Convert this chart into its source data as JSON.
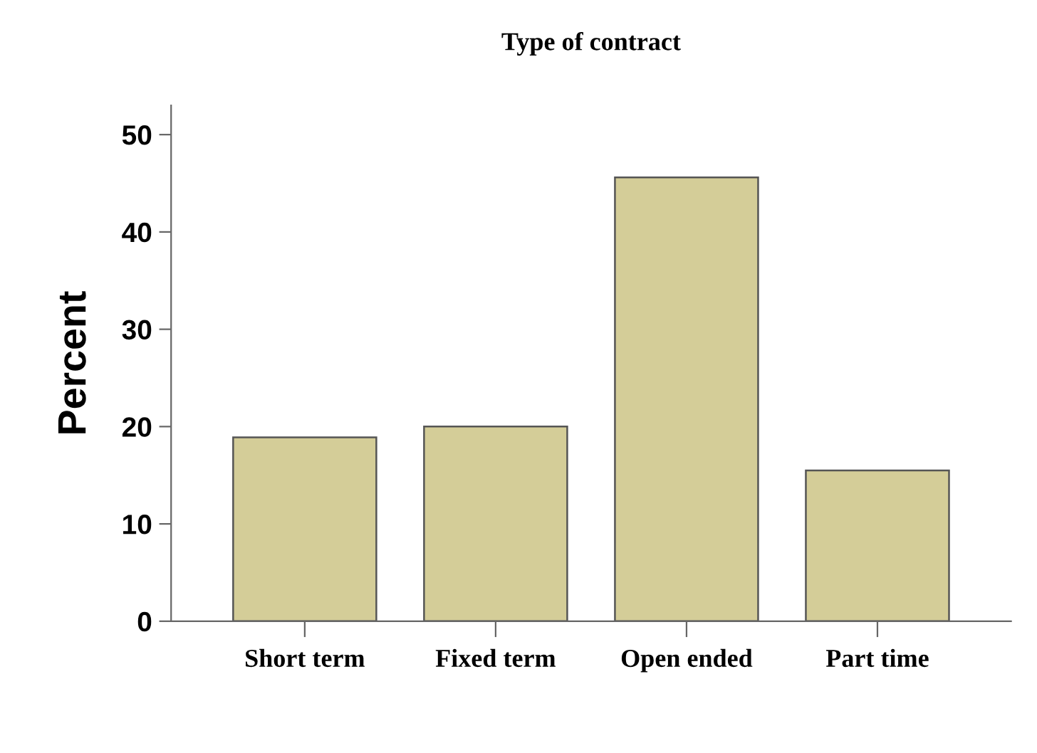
{
  "chart_data": {
    "type": "bar",
    "title": "Type of contract",
    "ylabel": "Percent",
    "categories": [
      "Short term",
      "Fixed term",
      "Open ended",
      "Part time"
    ],
    "values": [
      18.9,
      20.0,
      45.6,
      15.5
    ],
    "color": "#d4cd98",
    "ylim": [
      0,
      53
    ],
    "yticks": [
      0,
      10,
      20,
      30,
      40,
      50
    ],
    "grid": false,
    "legend": false
  }
}
